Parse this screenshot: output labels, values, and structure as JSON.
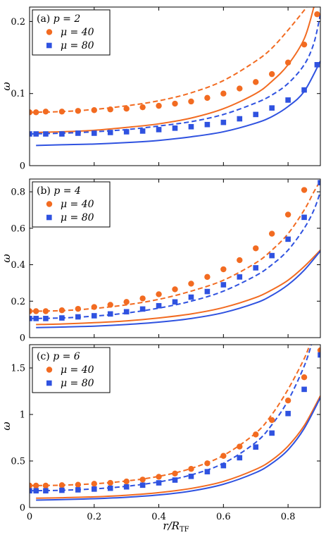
{
  "colors": {
    "series_40": "#f26b21",
    "series_80": "#2f52e0"
  },
  "chart_data": [
    {
      "type": "line",
      "panel_label": "(a)",
      "legend_title": "p = 2",
      "xlabel": "",
      "ylabel": "ω",
      "xlim": [
        0,
        0.9
      ],
      "ylim": [
        0,
        0.22
      ],
      "yticks": [
        0,
        0.1,
        0.2
      ],
      "ytick_labels": [
        "0",
        "0.1",
        "0.2"
      ],
      "xticks": [
        0,
        0.2,
        0.4,
        0.6,
        0.8
      ],
      "xtick_labels": [
        "",
        "",
        "",
        "",
        ""
      ],
      "legend_placement": "top-left",
      "series": [
        {
          "name": "μ = 40",
          "color": "#f26b21",
          "marker": "circle",
          "x": [
            0,
            0.02,
            0.05,
            0.1,
            0.15,
            0.2,
            0.25,
            0.3,
            0.35,
            0.4,
            0.45,
            0.5,
            0.55,
            0.6,
            0.65,
            0.7,
            0.75,
            0.8,
            0.85,
            0.89
          ],
          "y": [
            0.074,
            0.074,
            0.075,
            0.075,
            0.076,
            0.077,
            0.078,
            0.079,
            0.081,
            0.083,
            0.086,
            0.089,
            0.094,
            0.1,
            0.107,
            0.116,
            0.127,
            0.143,
            0.168,
            0.21
          ]
        },
        {
          "name": "μ = 80",
          "color": "#2f52e0",
          "marker": "square",
          "x": [
            0,
            0.02,
            0.05,
            0.1,
            0.15,
            0.2,
            0.25,
            0.3,
            0.35,
            0.4,
            0.45,
            0.5,
            0.55,
            0.6,
            0.65,
            0.7,
            0.75,
            0.8,
            0.85,
            0.89
          ],
          "y": [
            0.044,
            0.044,
            0.044,
            0.044,
            0.045,
            0.045,
            0.046,
            0.047,
            0.048,
            0.05,
            0.052,
            0.054,
            0.057,
            0.06,
            0.065,
            0.071,
            0.08,
            0.091,
            0.105,
            0.14
          ]
        }
      ],
      "curves": [
        {
          "color": "#f26b21",
          "style": "dashed",
          "x": [
            0,
            0.1,
            0.2,
            0.3,
            0.4,
            0.5,
            0.6,
            0.7,
            0.75,
            0.8,
            0.84,
            0.86,
            0.88
          ],
          "y": [
            0.074,
            0.075,
            0.078,
            0.083,
            0.09,
            0.101,
            0.118,
            0.145,
            0.163,
            0.188,
            0.21,
            0.222,
            0.24
          ]
        },
        {
          "color": "#f26b21",
          "style": "solid",
          "x": [
            0.02,
            0.1,
            0.2,
            0.3,
            0.4,
            0.5,
            0.6,
            0.7,
            0.75,
            0.8,
            0.85,
            0.88
          ],
          "y": [
            0.046,
            0.047,
            0.049,
            0.053,
            0.058,
            0.066,
            0.079,
            0.1,
            0.117,
            0.14,
            0.176,
            0.22
          ]
        },
        {
          "color": "#2f52e0",
          "style": "dashed",
          "x": [
            0,
            0.1,
            0.2,
            0.3,
            0.4,
            0.5,
            0.6,
            0.7,
            0.75,
            0.8,
            0.85,
            0.88,
            0.9
          ],
          "y": [
            0.044,
            0.045,
            0.047,
            0.05,
            0.055,
            0.061,
            0.071,
            0.087,
            0.098,
            0.114,
            0.14,
            0.17,
            0.21
          ]
        },
        {
          "color": "#2f52e0",
          "style": "solid",
          "x": [
            0.02,
            0.1,
            0.2,
            0.3,
            0.4,
            0.5,
            0.6,
            0.7,
            0.75,
            0.8,
            0.85,
            0.9
          ],
          "y": [
            0.028,
            0.029,
            0.03,
            0.032,
            0.035,
            0.04,
            0.047,
            0.059,
            0.068,
            0.082,
            0.103,
            0.145
          ]
        }
      ]
    },
    {
      "type": "line",
      "panel_label": "(b)",
      "legend_title": "p = 4",
      "xlabel": "",
      "ylabel": "ω",
      "xlim": [
        0,
        0.9
      ],
      "ylim": [
        0,
        0.87
      ],
      "yticks": [
        0,
        0.2,
        0.4,
        0.6,
        0.8
      ],
      "ytick_labels": [
        "0",
        "0.2",
        "0.4",
        "0.6",
        "0.8"
      ],
      "xticks": [
        0,
        0.2,
        0.4,
        0.6,
        0.8
      ],
      "xtick_labels": [
        "",
        "",
        "",
        "",
        ""
      ],
      "legend_placement": "top-left",
      "series": [
        {
          "name": "μ = 40",
          "color": "#f26b21",
          "marker": "circle",
          "x": [
            0,
            0.02,
            0.05,
            0.1,
            0.15,
            0.2,
            0.25,
            0.3,
            0.35,
            0.4,
            0.45,
            0.5,
            0.55,
            0.6,
            0.65,
            0.7,
            0.75,
            0.8,
            0.85
          ],
          "y": [
            0.145,
            0.145,
            0.145,
            0.15,
            0.158,
            0.168,
            0.18,
            0.196,
            0.215,
            0.238,
            0.265,
            0.296,
            0.333,
            0.375,
            0.425,
            0.49,
            0.57,
            0.675,
            0.81
          ]
        },
        {
          "name": "μ = 80",
          "color": "#2f52e0",
          "marker": "square",
          "x": [
            0,
            0.02,
            0.05,
            0.1,
            0.15,
            0.2,
            0.25,
            0.3,
            0.35,
            0.4,
            0.45,
            0.5,
            0.55,
            0.6,
            0.65,
            0.7,
            0.75,
            0.8,
            0.85,
            0.9
          ],
          "y": [
            0.105,
            0.105,
            0.105,
            0.108,
            0.114,
            0.12,
            0.13,
            0.142,
            0.157,
            0.175,
            0.196,
            0.222,
            0.253,
            0.29,
            0.333,
            0.383,
            0.45,
            0.54,
            0.66,
            0.85
          ]
        }
      ],
      "curves": [
        {
          "color": "#f26b21",
          "style": "dashed",
          "x": [
            0,
            0.1,
            0.2,
            0.3,
            0.4,
            0.5,
            0.6,
            0.7,
            0.75,
            0.8,
            0.85,
            0.88,
            0.9
          ],
          "y": [
            0.145,
            0.148,
            0.16,
            0.18,
            0.21,
            0.255,
            0.315,
            0.41,
            0.48,
            0.57,
            0.7,
            0.8,
            0.86
          ]
        },
        {
          "color": "#2f52e0",
          "style": "dashed",
          "x": [
            0,
            0.1,
            0.2,
            0.3,
            0.4,
            0.5,
            0.6,
            0.7,
            0.75,
            0.8,
            0.85,
            0.88,
            0.9
          ],
          "y": [
            0.105,
            0.108,
            0.118,
            0.135,
            0.162,
            0.2,
            0.255,
            0.34,
            0.4,
            0.48,
            0.6,
            0.7,
            0.8
          ]
        },
        {
          "color": "#f26b21",
          "style": "solid",
          "x": [
            0.02,
            0.1,
            0.2,
            0.3,
            0.4,
            0.5,
            0.6,
            0.7,
            0.75,
            0.8,
            0.85,
            0.9
          ],
          "y": [
            0.072,
            0.075,
            0.082,
            0.092,
            0.108,
            0.13,
            0.165,
            0.22,
            0.262,
            0.315,
            0.39,
            0.48
          ]
        },
        {
          "color": "#2f52e0",
          "style": "solid",
          "x": [
            0.02,
            0.1,
            0.2,
            0.3,
            0.4,
            0.5,
            0.6,
            0.7,
            0.75,
            0.8,
            0.85,
            0.9
          ],
          "y": [
            0.055,
            0.058,
            0.063,
            0.072,
            0.085,
            0.105,
            0.137,
            0.19,
            0.232,
            0.29,
            0.37,
            0.475
          ]
        }
      ]
    },
    {
      "type": "line",
      "panel_label": "(c)",
      "legend_title": "p = 6",
      "xlabel": "r/R_TF",
      "ylabel": "ω",
      "xlim": [
        0,
        0.9
      ],
      "ylim": [
        0,
        1.75
      ],
      "yticks": [
        0,
        0.5,
        1,
        1.5
      ],
      "ytick_labels": [
        "0",
        "0.5",
        "1",
        "1.5"
      ],
      "xticks": [
        0,
        0.2,
        0.4,
        0.6,
        0.8
      ],
      "xtick_labels": [
        "0",
        "0.2",
        "0.4",
        "0.6",
        "0.8"
      ],
      "legend_placement": "top-left",
      "series": [
        {
          "name": "μ = 40",
          "color": "#f26b21",
          "marker": "circle",
          "x": [
            0,
            0.02,
            0.05,
            0.1,
            0.15,
            0.2,
            0.25,
            0.3,
            0.35,
            0.4,
            0.45,
            0.5,
            0.55,
            0.6,
            0.65,
            0.7,
            0.75,
            0.8,
            0.85,
            0.9
          ],
          "y": [
            0.235,
            0.235,
            0.235,
            0.24,
            0.245,
            0.255,
            0.265,
            0.28,
            0.3,
            0.33,
            0.365,
            0.415,
            0.475,
            0.555,
            0.655,
            0.785,
            0.94,
            1.15,
            1.4,
            1.69
          ]
        },
        {
          "name": "μ = 80",
          "color": "#2f52e0",
          "marker": "square",
          "x": [
            0,
            0.02,
            0.05,
            0.1,
            0.15,
            0.2,
            0.25,
            0.3,
            0.35,
            0.4,
            0.45,
            0.5,
            0.55,
            0.6,
            0.65,
            0.7,
            0.75,
            0.8,
            0.85,
            0.9
          ],
          "y": [
            0.18,
            0.18,
            0.18,
            0.185,
            0.19,
            0.198,
            0.207,
            0.222,
            0.24,
            0.265,
            0.295,
            0.335,
            0.385,
            0.45,
            0.535,
            0.65,
            0.8,
            1.01,
            1.27,
            1.64
          ]
        }
      ],
      "curves": [
        {
          "color": "#f26b21",
          "style": "dashed",
          "x": [
            0,
            0.1,
            0.2,
            0.3,
            0.4,
            0.5,
            0.6,
            0.7,
            0.75,
            0.8,
            0.85,
            0.87
          ],
          "y": [
            0.235,
            0.24,
            0.255,
            0.285,
            0.335,
            0.42,
            0.56,
            0.8,
            1.0,
            1.27,
            1.6,
            1.78
          ]
        },
        {
          "color": "#2f52e0",
          "style": "dashed",
          "x": [
            0,
            0.1,
            0.2,
            0.3,
            0.4,
            0.5,
            0.6,
            0.7,
            0.75,
            0.8,
            0.85,
            0.875
          ],
          "y": [
            0.18,
            0.185,
            0.2,
            0.228,
            0.275,
            0.35,
            0.475,
            0.7,
            0.89,
            1.15,
            1.52,
            1.78
          ]
        },
        {
          "color": "#f26b21",
          "style": "solid",
          "x": [
            0.02,
            0.1,
            0.2,
            0.3,
            0.4,
            0.5,
            0.6,
            0.7,
            0.75,
            0.8,
            0.85,
            0.9
          ],
          "y": [
            0.1,
            0.105,
            0.115,
            0.132,
            0.16,
            0.205,
            0.28,
            0.41,
            0.51,
            0.66,
            0.88,
            1.2
          ]
        },
        {
          "color": "#2f52e0",
          "style": "solid",
          "x": [
            0.02,
            0.1,
            0.2,
            0.3,
            0.4,
            0.5,
            0.6,
            0.7,
            0.75,
            0.8,
            0.85,
            0.9
          ],
          "y": [
            0.08,
            0.085,
            0.095,
            0.11,
            0.135,
            0.177,
            0.25,
            0.375,
            0.475,
            0.62,
            0.85,
            1.18
          ]
        }
      ]
    }
  ]
}
